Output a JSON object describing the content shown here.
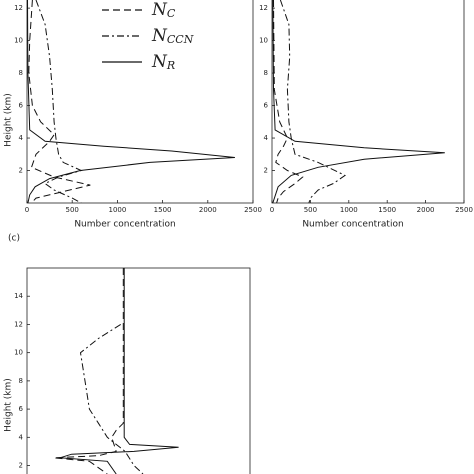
{
  "chart_data": [
    {
      "type": "line",
      "xlabel": "Number concentration",
      "ylabel": "Height (km)",
      "xlim": [
        0,
        2500
      ],
      "ylim": [
        0,
        12.5
      ],
      "xticks": [
        0,
        500,
        1000,
        1500,
        2000,
        2500
      ],
      "yticks": [
        2,
        4,
        6,
        8,
        10,
        12
      ],
      "legend": "upper right",
      "series": [
        {
          "name": "N",
          "subscript": "C",
          "style": "dashed",
          "color": "#111",
          "x": [
            60,
            30,
            20,
            60,
            150,
            300,
            250,
            100,
            50,
            300,
            700,
            400,
            100,
            50
          ],
          "y": [
            12.5,
            10,
            8,
            6,
            5,
            4.2,
            3.8,
            3,
            2.2,
            1.6,
            1.1,
            0.7,
            0.3,
            0
          ]
        },
        {
          "name": "N",
          "subscript": "CCN",
          "style": "dashdot",
          "color": "#111",
          "x": [
            100,
            200,
            250,
            280,
            300,
            320,
            350,
            400,
            600,
            350,
            200,
            300,
            500,
            600
          ],
          "y": [
            12.5,
            11,
            9,
            7,
            5,
            4,
            3,
            2.5,
            2,
            1.6,
            1.2,
            0.8,
            0.3,
            0
          ]
        },
        {
          "name": "N",
          "subscript": "R",
          "style": "solid",
          "color": "#111",
          "x": [
            5,
            10,
            30,
            200,
            850,
            1600,
            2300,
            1360,
            590,
            250,
            90,
            30,
            10
          ],
          "y": [
            12.5,
            8,
            4.5,
            3.8,
            3.5,
            3.2,
            2.8,
            2.5,
            2,
            1.5,
            1,
            0.5,
            0
          ]
        }
      ]
    },
    {
      "type": "line",
      "xlabel": "Number concentration",
      "xlim": [
        0,
        2500
      ],
      "ylim": [
        0,
        12.5
      ],
      "xticks": [
        0,
        500,
        1000,
        1500,
        2000,
        2500
      ],
      "yticks": [
        2,
        4,
        6,
        8,
        10,
        12
      ],
      "series": [
        {
          "name": "N",
          "subscript": "C",
          "style": "dashed",
          "color": "#111",
          "x": [
            20,
            30,
            100,
            200,
            150,
            80,
            50,
            200,
            400,
            300,
            150,
            80,
            60
          ],
          "y": [
            12.5,
            7,
            5,
            4,
            3.5,
            3,
            2.5,
            2,
            1.6,
            1.2,
            0.7,
            0.3,
            0
          ]
        },
        {
          "name": "N",
          "subscript": "CCN",
          "style": "dashdot",
          "color": "#111",
          "x": [
            110,
            220,
            230,
            200,
            220,
            250,
            300,
            600,
            950,
            800,
            600,
            500,
            480
          ],
          "y": [
            12.5,
            11,
            9,
            7,
            5,
            4,
            3,
            2.5,
            1.7,
            1.2,
            0.8,
            0.3,
            0
          ]
        },
        {
          "name": "N",
          "subscript": "R",
          "style": "solid",
          "color": "#111",
          "x": [
            10,
            20,
            40,
            300,
            1200,
            2250,
            1200,
            600,
            250,
            80,
            10
          ],
          "y": [
            12.5,
            7,
            4.5,
            3.8,
            3.4,
            3.1,
            2.7,
            2.2,
            1.7,
            1,
            0
          ]
        }
      ]
    },
    {
      "type": "line",
      "panel_label": "(c)",
      "ylabel": "Height (km)",
      "xlim": [
        0,
        2500
      ],
      "ylim": [
        1.4,
        16
      ],
      "yticks": [
        2,
        4,
        6,
        8,
        10,
        12,
        14
      ],
      "series": [
        {
          "name": "N",
          "subscript": "C",
          "style": "dashed",
          "color": "#111",
          "x": [
            1080,
            1080,
            1000,
            950,
            1000,
            800,
            300,
            700,
            900
          ],
          "y": [
            16,
            5,
            4.5,
            4,
            3,
            2.7,
            2.55,
            2.3,
            1.4
          ]
        },
        {
          "name": "N",
          "subscript": "CCN",
          "style": "dashdot",
          "color": "#111",
          "x": [
            1050,
            800,
            600,
            650,
            700,
            800,
            900,
            1000,
            1100,
            1150,
            1200,
            1300
          ],
          "y": [
            12,
            11,
            10,
            8,
            6,
            5,
            4,
            3.5,
            3,
            2.5,
            2,
            1.4
          ]
        },
        {
          "name": "N",
          "subscript": "R",
          "style": "solid",
          "color": "#111",
          "x": [
            1090,
            1090,
            1150,
            1700,
            1200,
            500,
            370,
            900,
            1000
          ],
          "y": [
            16,
            4,
            3.5,
            3.3,
            3,
            2.8,
            2.55,
            2.3,
            1.4
          ]
        }
      ]
    }
  ]
}
